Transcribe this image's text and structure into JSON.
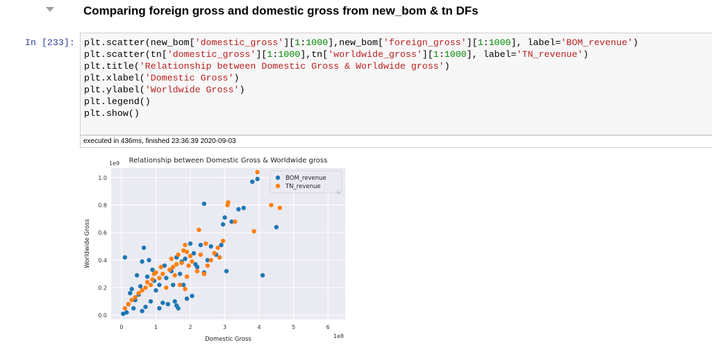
{
  "cell_heading": "Comparing foreign gross and domestic gross from new_bom & tn DFs",
  "prompt": "In [233]:",
  "code_lines": [
    [
      {
        "t": "plt.scatter(new_bom["
      },
      {
        "t": "'domestic_gross'",
        "c": "s"
      },
      {
        "t": "]["
      },
      {
        "t": "1",
        "c": "n"
      },
      {
        "t": ":"
      },
      {
        "t": "1000",
        "c": "n"
      },
      {
        "t": "],new_bom["
      },
      {
        "t": "'foreign_gross'",
        "c": "s"
      },
      {
        "t": "]["
      },
      {
        "t": "1",
        "c": "n"
      },
      {
        "t": ":"
      },
      {
        "t": "1000",
        "c": "n"
      },
      {
        "t": "], label="
      },
      {
        "t": "'BOM_revenue'",
        "c": "s"
      },
      {
        "t": ")"
      }
    ],
    [
      {
        "t": "plt.scatter(tn["
      },
      {
        "t": "'domestic_gross'",
        "c": "s"
      },
      {
        "t": "]["
      },
      {
        "t": "1",
        "c": "n"
      },
      {
        "t": ":"
      },
      {
        "t": "1000",
        "c": "n"
      },
      {
        "t": "],tn["
      },
      {
        "t": "'worldwide_gross'",
        "c": "s"
      },
      {
        "t": "]["
      },
      {
        "t": "1",
        "c": "n"
      },
      {
        "t": ":"
      },
      {
        "t": "1000",
        "c": "n"
      },
      {
        "t": "], label="
      },
      {
        "t": "'TN_revenue'",
        "c": "s"
      },
      {
        "t": ")"
      }
    ],
    [
      {
        "t": "plt.title("
      },
      {
        "t": "'Relationship between Domestic Gross & Worldwide gross'",
        "c": "s"
      },
      {
        "t": ")"
      }
    ],
    [
      {
        "t": "plt.xlabel("
      },
      {
        "t": "'Domestic Gross'",
        "c": "s"
      },
      {
        "t": ")"
      }
    ],
    [
      {
        "t": "plt.ylabel("
      },
      {
        "t": "'Worldwide Gross'",
        "c": "s"
      },
      {
        "t": ")"
      }
    ],
    [
      {
        "t": "plt.legend()"
      }
    ],
    [
      {
        "t": "plt.show()"
      }
    ]
  ],
  "exec_status": "executed in 436ms, finished 23:36:39 2020-09-03",
  "colors": {
    "bom": "#1f77b4",
    "tn": "#ff7f0e",
    "plot_bg": "#eaeaf2",
    "grid": "#ffffff",
    "prompt": "#303f9f",
    "string": "#ba2121",
    "number": "#008800"
  },
  "chart_data": {
    "type": "scatter",
    "title": "Relationship between Domestic Gross & Worldwide gross",
    "xlabel": "Domestic Gross",
    "ylabel": "Worldwide Gross",
    "x_offset_label": "1e8",
    "y_offset_label": "1e9",
    "xlim": [
      -0.3,
      6.5
    ],
    "ylim": [
      -0.03,
      1.07
    ],
    "xticks": [
      0,
      1,
      2,
      3,
      4,
      5,
      6
    ],
    "xtick_labels": [
      "0",
      "1",
      "2",
      "3",
      "4",
      "5",
      "6"
    ],
    "yticks": [
      0.0,
      0.2,
      0.4,
      0.6,
      0.8,
      1.0
    ],
    "ytick_labels": [
      "0.0",
      "0.2",
      "0.4",
      "0.6",
      "0.8",
      "1.0"
    ],
    "grid": true,
    "legend_position": "upper right",
    "series": [
      {
        "name": "BOM_revenue",
        "color": "#1f77b4",
        "points": [
          [
            0.1,
            0.42
          ],
          [
            0.45,
            0.29
          ],
          [
            0.55,
            0.21
          ],
          [
            0.5,
            0.15
          ],
          [
            0.3,
            0.19
          ],
          [
            0.6,
            0.39
          ],
          [
            0.65,
            0.49
          ],
          [
            0.8,
            0.4
          ],
          [
            0.9,
            0.33
          ],
          [
            1.0,
            0.18
          ],
          [
            1.1,
            0.22
          ],
          [
            1.3,
            0.27
          ],
          [
            1.5,
            0.22
          ],
          [
            1.55,
            0.1
          ],
          [
            1.6,
            0.42
          ],
          [
            1.75,
            0.39
          ],
          [
            1.85,
            0.41
          ],
          [
            2.0,
            0.52
          ],
          [
            2.15,
            0.37
          ],
          [
            2.3,
            0.51
          ],
          [
            2.4,
            0.31
          ],
          [
            2.5,
            0.4
          ],
          [
            2.6,
            0.5
          ],
          [
            2.75,
            0.44
          ],
          [
            2.9,
            0.51
          ],
          [
            2.95,
            0.66
          ],
          [
            3.0,
            0.71
          ],
          [
            3.05,
            0.32
          ],
          [
            3.2,
            0.68
          ],
          [
            3.4,
            0.77
          ],
          [
            3.55,
            0.78
          ],
          [
            3.8,
            0.97
          ],
          [
            3.95,
            0.99
          ],
          [
            4.1,
            0.29
          ],
          [
            4.5,
            0.64
          ],
          [
            6.3,
            0.9
          ],
          [
            2.4,
            0.81
          ],
          [
            1.65,
            0.05
          ],
          [
            1.2,
            0.09
          ],
          [
            0.25,
            0.16
          ],
          [
            0.4,
            0.11
          ],
          [
            0.7,
            0.06
          ],
          [
            0.85,
            0.1
          ],
          [
            1.35,
            0.08
          ],
          [
            0.15,
            0.02
          ],
          [
            0.05,
            0.01
          ],
          [
            0.95,
            0.25
          ],
          [
            1.7,
            0.3
          ],
          [
            2.1,
            0.45
          ],
          [
            1.6,
            0.07
          ],
          [
            0.35,
            0.05
          ],
          [
            0.2,
            0.08
          ],
          [
            1.1,
            0.05
          ],
          [
            0.6,
            0.03
          ],
          [
            1.8,
            0.22
          ],
          [
            2.2,
            0.35
          ],
          [
            1.45,
            0.32
          ],
          [
            0.75,
            0.28
          ],
          [
            1.25,
            0.36
          ],
          [
            1.9,
            0.12
          ],
          [
            2.05,
            0.14
          ]
        ]
      },
      {
        "name": "TN_revenue",
        "color": "#ff7f0e",
        "points": [
          [
            3.95,
            1.04
          ],
          [
            3.1,
            0.82
          ],
          [
            3.08,
            0.8
          ],
          [
            4.35,
            0.8
          ],
          [
            4.6,
            0.78
          ],
          [
            2.25,
            0.62
          ],
          [
            3.85,
            0.61
          ],
          [
            2.95,
            0.54
          ],
          [
            1.85,
            0.51
          ],
          [
            2.45,
            0.52
          ],
          [
            2.8,
            0.49
          ],
          [
            1.9,
            0.46
          ],
          [
            2.0,
            0.43
          ],
          [
            2.3,
            0.44
          ],
          [
            2.7,
            0.45
          ],
          [
            2.85,
            0.42
          ],
          [
            2.6,
            0.4
          ],
          [
            1.75,
            0.38
          ],
          [
            1.6,
            0.37
          ],
          [
            1.5,
            0.35
          ],
          [
            1.4,
            0.33
          ],
          [
            1.2,
            0.3
          ],
          [
            1.0,
            0.31
          ],
          [
            1.1,
            0.27
          ],
          [
            0.9,
            0.26
          ],
          [
            0.85,
            0.22
          ],
          [
            0.7,
            0.2
          ],
          [
            0.6,
            0.18
          ],
          [
            0.5,
            0.16
          ],
          [
            0.4,
            0.13
          ],
          [
            0.3,
            0.11
          ],
          [
            0.2,
            0.08
          ],
          [
            0.1,
            0.05
          ],
          [
            2.2,
            0.32
          ],
          [
            2.5,
            0.36
          ],
          [
            3.3,
            0.68
          ],
          [
            1.3,
            0.2
          ],
          [
            1.9,
            0.28
          ],
          [
            2.4,
            0.3
          ],
          [
            1.7,
            0.22
          ],
          [
            1.85,
            0.19
          ],
          [
            1.95,
            0.36
          ],
          [
            1.55,
            0.29
          ],
          [
            0.75,
            0.24
          ],
          [
            0.95,
            0.3
          ],
          [
            1.15,
            0.35
          ],
          [
            1.45,
            0.41
          ],
          [
            1.65,
            0.44
          ],
          [
            1.8,
            0.47
          ],
          [
            2.05,
            0.39
          ]
        ]
      }
    ]
  }
}
